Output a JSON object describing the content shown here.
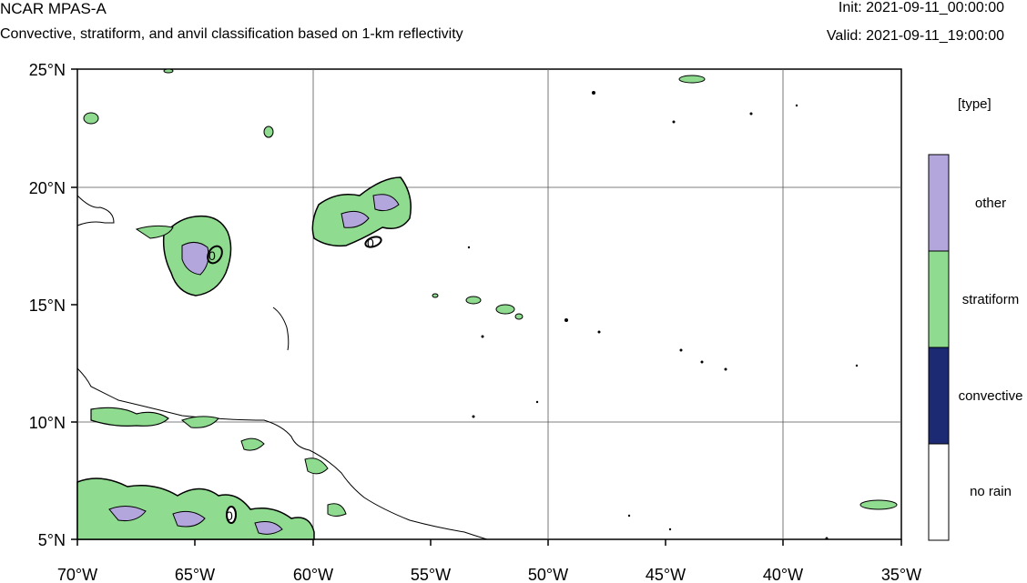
{
  "header": {
    "title": "NCAR MPAS-A",
    "subtitle": "Convective, stratiform, and anvil classification based on 1-km reflectivity",
    "init": "Init: 2021-09-11_00:00:00",
    "valid": "Valid: 2021-09-11_19:00:00"
  },
  "map": {
    "lon_ticks": [
      "70°W",
      "65°W",
      "60°W",
      "55°W",
      "50°W",
      "45°W",
      "40°W",
      "35°W"
    ],
    "lat_ticks": [
      "25°N",
      "20°N",
      "15°N",
      "10°N",
      "5°N"
    ],
    "extent": {
      "lon": [
        -70,
        -35
      ],
      "lat": [
        5,
        25
      ]
    },
    "contour_labels": [
      "0",
      "0",
      "0"
    ]
  },
  "legend": {
    "title": "[type]",
    "items": [
      {
        "label": "other",
        "color": "#b3a6dc"
      },
      {
        "label": "stratiform",
        "color": "#8fdb8f"
      },
      {
        "label": "convective",
        "color": "#1b2a73"
      },
      {
        "label": "no rain",
        "color": "#ffffff"
      }
    ]
  }
}
